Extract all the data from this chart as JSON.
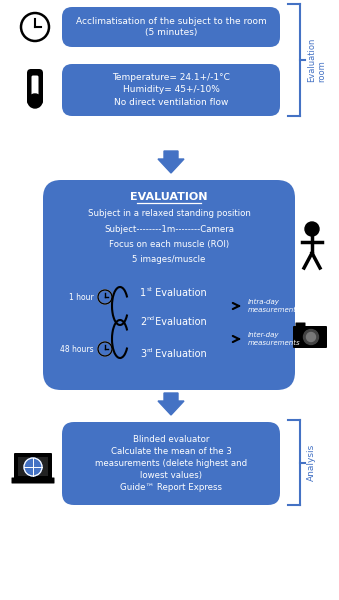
{
  "bg_color": "#ffffff",
  "box_color": "#4472c4",
  "box_text_color": "#ffffff",
  "bracket_color": "#4472c4",
  "arrow_color": "#4472c4",
  "box1_text": "Acclimatisation of the subject to the room\n(5 minutes)",
  "box2_text": "Temperature= 24.1+/-1°C\nHumidity= 45+/-10%\nNo direct ventilation flow",
  "eval_title": "EVALUATION",
  "eval_lines": [
    "Subject in a relaxed standing position",
    "Subject--------1m--------Camera",
    "Focus on each muscle (ROI)",
    "5 images/muscle"
  ],
  "intra_text": "Intra-day\nmeasurements",
  "inter_text": "Inter-day\nmeasurements",
  "time1": "1 hour",
  "time2": "48 hours",
  "box4_text": "Blinded evaluator\nCalculate the mean of the 3\nmeasurements (delete highest and\nlowest values)\nGuide™ Report Express",
  "label_eval_room": "Evaluation\nroom",
  "label_analysis": "Analysis"
}
